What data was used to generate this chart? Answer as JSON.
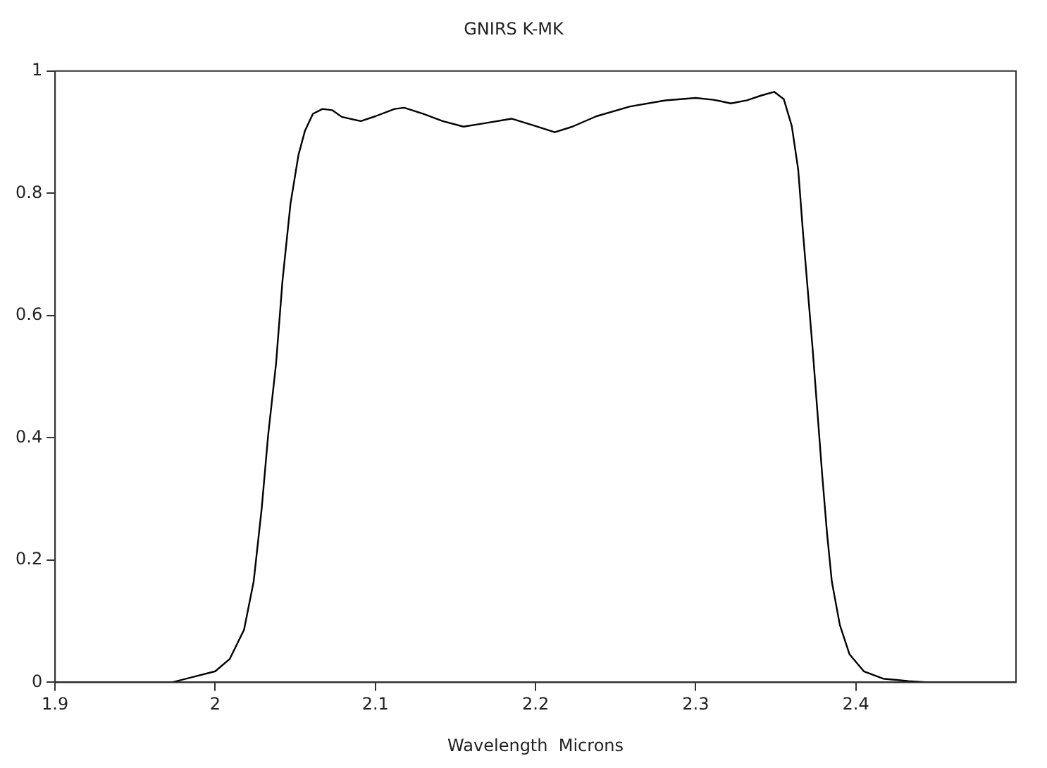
{
  "chart_data": {
    "type": "line",
    "title": "GNIRS K-MK",
    "xlabel": "Wavelength  Microns",
    "xlim": [
      1.9,
      2.5
    ],
    "xticks": [
      1.9,
      2,
      2.1,
      2.2,
      2.3,
      2.4
    ],
    "ylim": [
      0,
      1
    ],
    "yticks": [
      0,
      0.2,
      0.4,
      0.6,
      0.8,
      1
    ],
    "grid": false,
    "legend": false,
    "marker": "none",
    "line_style": "solid",
    "series": [
      {
        "color": "#000000",
        "x": [
          1.9,
          1.973,
          2.0,
          2.009,
          2.018,
          2.024,
          2.029,
          2.033,
          2.038,
          2.042,
          2.047,
          2.052,
          2.056,
          2.061,
          2.067,
          2.073,
          2.079,
          2.091,
          2.1,
          2.112,
          2.118,
          2.13,
          2.142,
          2.155,
          2.167,
          2.185,
          2.2,
          2.212,
          2.223,
          2.238,
          2.259,
          2.281,
          2.3,
          2.311,
          2.322,
          2.332,
          2.341,
          2.349,
          2.355,
          2.36,
          2.364,
          2.367,
          2.37,
          2.373,
          2.376,
          2.379,
          2.382,
          2.385,
          2.39,
          2.396,
          2.405,
          2.417,
          2.433,
          2.445,
          2.5
        ],
        "values": [
          0,
          0,
          0.018,
          0.038,
          0.086,
          0.165,
          0.284,
          0.403,
          0.522,
          0.657,
          0.783,
          0.863,
          0.902,
          0.93,
          0.938,
          0.936,
          0.925,
          0.918,
          0.926,
          0.938,
          0.94,
          0.93,
          0.918,
          0.909,
          0.914,
          0.922,
          0.91,
          0.9,
          0.909,
          0.926,
          0.942,
          0.952,
          0.956,
          0.953,
          0.947,
          0.952,
          0.96,
          0.966,
          0.954,
          0.91,
          0.839,
          0.736,
          0.641,
          0.546,
          0.443,
          0.339,
          0.244,
          0.165,
          0.094,
          0.046,
          0.018,
          0.006,
          0.002,
          0,
          0
        ]
      }
    ]
  }
}
